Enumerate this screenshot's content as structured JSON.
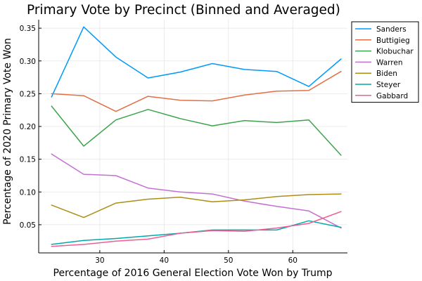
{
  "chart_data": {
    "type": "line",
    "title": "Primary Vote by Precinct (Binned and Averaged)",
    "xlabel": "Percentage of 2016 General Election Vote Won by Trump",
    "ylabel": "Percentage of 2020 Primary Vote Won",
    "xlim": [
      20.5,
      68.5
    ],
    "ylim": [
      0.007,
      0.363
    ],
    "xticks": [
      30,
      40,
      50,
      60
    ],
    "xtick_labels": [
      "30",
      "40",
      "50",
      "60"
    ],
    "yticks": [
      0.05,
      0.1,
      0.15,
      0.2,
      0.25,
      0.3,
      0.35
    ],
    "ytick_labels": [
      "0.05",
      "0.10",
      "0.15",
      "0.20",
      "0.25",
      "0.30",
      "0.35"
    ],
    "grid": true,
    "legend_position": "top-right outside",
    "x": [
      22.5,
      27.5,
      32.5,
      37.5,
      42.5,
      47.5,
      52.5,
      57.5,
      62.5,
      67.5
    ],
    "series": [
      {
        "name": "Sanders",
        "color": "#009af9",
        "values": [
          0.245,
          0.352,
          0.306,
          0.274,
          0.283,
          0.296,
          0.287,
          0.284,
          0.261,
          0.303
        ]
      },
      {
        "name": "Buttigieg",
        "color": "#e26f46",
        "values": [
          0.25,
          0.247,
          0.223,
          0.246,
          0.24,
          0.239,
          0.248,
          0.254,
          0.255,
          0.284
        ]
      },
      {
        "name": "Klobuchar",
        "color": "#3da44d",
        "values": [
          0.231,
          0.17,
          0.21,
          0.226,
          0.212,
          0.201,
          0.209,
          0.206,
          0.21,
          0.156
        ]
      },
      {
        "name": "Warren",
        "color": "#c271d2",
        "values": [
          0.158,
          0.127,
          0.125,
          0.106,
          0.1,
          0.097,
          0.086,
          0.078,
          0.071,
          0.045
        ]
      },
      {
        "name": "Biden",
        "color": "#ac8d18",
        "values": [
          0.08,
          0.061,
          0.083,
          0.089,
          0.092,
          0.085,
          0.088,
          0.093,
          0.096,
          0.097
        ]
      },
      {
        "name": "Steyer",
        "color": "#00a9ad",
        "values": [
          0.02,
          0.026,
          0.029,
          0.033,
          0.037,
          0.042,
          0.042,
          0.042,
          0.056,
          0.046
        ]
      },
      {
        "name": "Gabbard",
        "color": "#ed5e93",
        "values": [
          0.017,
          0.02,
          0.025,
          0.028,
          0.037,
          0.041,
          0.04,
          0.045,
          0.052,
          0.07
        ]
      }
    ]
  }
}
